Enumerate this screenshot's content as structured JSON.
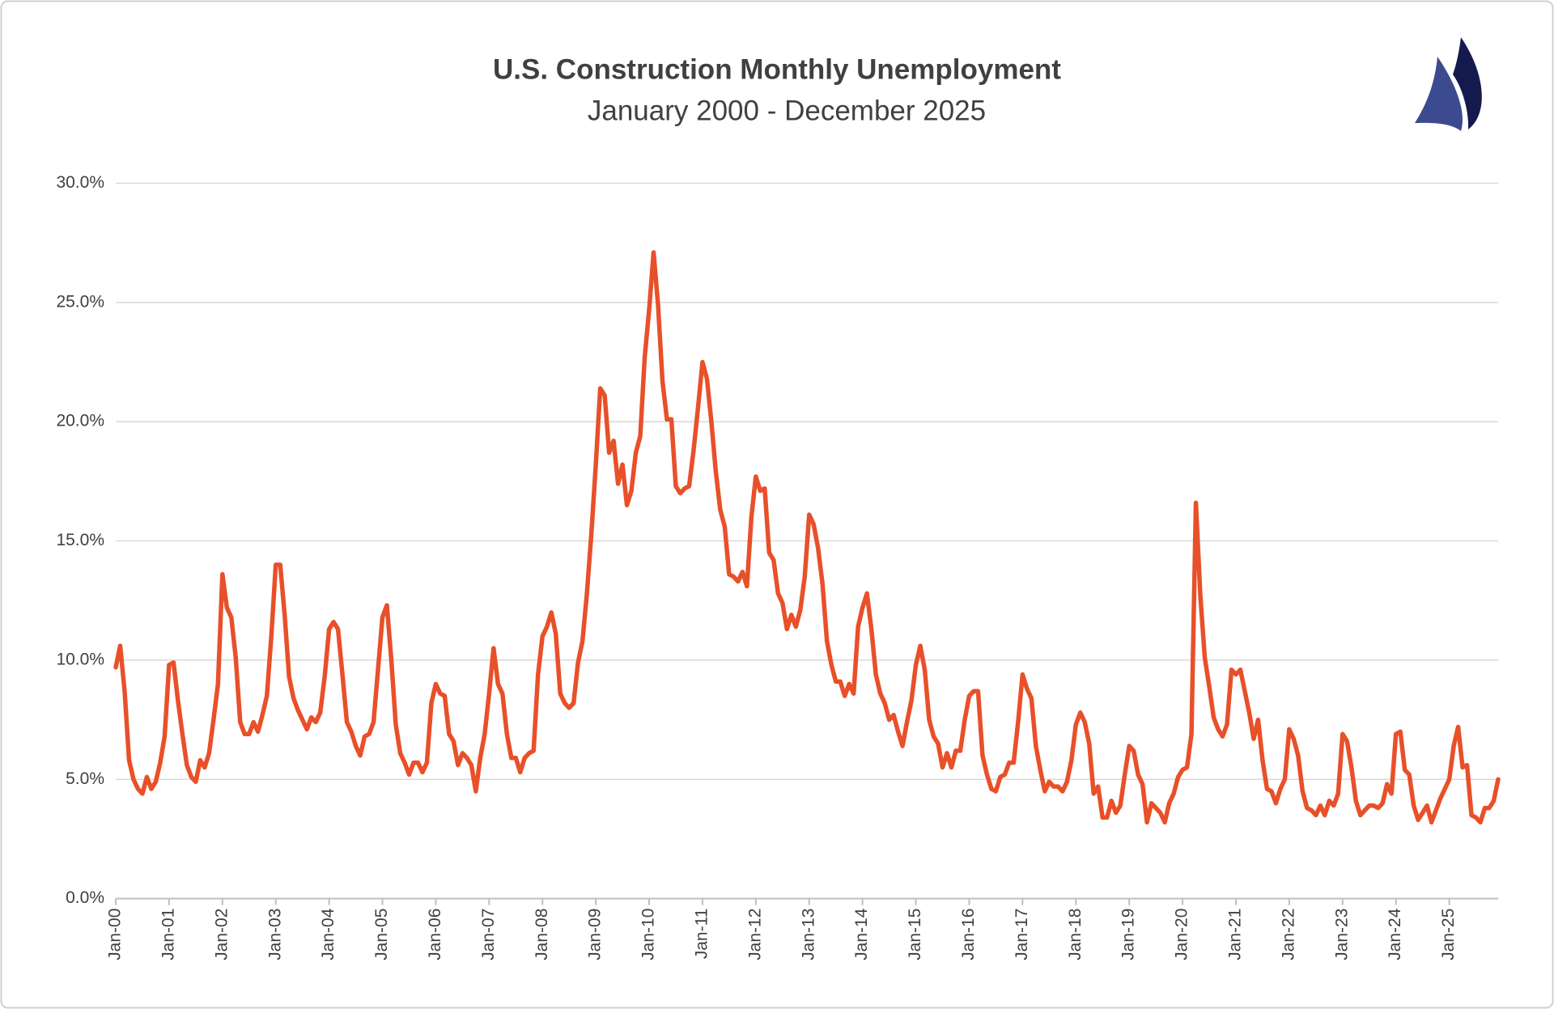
{
  "chart_data": {
    "type": "line",
    "title": "U.S. Construction Monthly Unemployment",
    "subtitle": "January 2000 - December 2025",
    "color": "#e8502a",
    "grid": true,
    "ylim": [
      0,
      30
    ],
    "yticks": [
      {
        "value": 0,
        "label": "0.0%"
      },
      {
        "value": 5,
        "label": "5.0%"
      },
      {
        "value": 10,
        "label": "10.0%"
      },
      {
        "value": 15,
        "label": "15.0%"
      },
      {
        "value": 20,
        "label": "20.0%"
      },
      {
        "value": 25,
        "label": "25.0%"
      },
      {
        "value": 30,
        "label": "30.0%"
      }
    ],
    "categories": [
      "Jan-00",
      null,
      null,
      null,
      null,
      null,
      null,
      null,
      null,
      null,
      null,
      null,
      "Jan-01",
      null,
      null,
      null,
      null,
      null,
      null,
      null,
      null,
      null,
      null,
      null,
      "Jan-02",
      null,
      null,
      null,
      null,
      null,
      null,
      null,
      null,
      null,
      null,
      null,
      "Jan-03",
      null,
      null,
      null,
      null,
      null,
      null,
      null,
      null,
      null,
      null,
      null,
      "Jan-04",
      null,
      null,
      null,
      null,
      null,
      null,
      null,
      null,
      null,
      null,
      null,
      "Jan-05",
      null,
      null,
      null,
      null,
      null,
      null,
      null,
      null,
      null,
      null,
      null,
      "Jan-06",
      null,
      null,
      null,
      null,
      null,
      null,
      null,
      null,
      null,
      null,
      null,
      "Jan-07",
      null,
      null,
      null,
      null,
      null,
      null,
      null,
      null,
      null,
      null,
      null,
      "Jan-08",
      null,
      null,
      null,
      null,
      null,
      null,
      null,
      null,
      null,
      null,
      null,
      "Jan-09",
      null,
      null,
      null,
      null,
      null,
      null,
      null,
      null,
      null,
      null,
      null,
      "Jan-10",
      null,
      null,
      null,
      null,
      null,
      null,
      null,
      null,
      null,
      null,
      null,
      "Jan-11",
      null,
      null,
      null,
      null,
      null,
      null,
      null,
      null,
      null,
      null,
      null,
      "Jan-12",
      null,
      null,
      null,
      null,
      null,
      null,
      null,
      null,
      null,
      null,
      null,
      "Jan-13",
      null,
      null,
      null,
      null,
      null,
      null,
      null,
      null,
      null,
      null,
      null,
      "Jan-14",
      null,
      null,
      null,
      null,
      null,
      null,
      null,
      null,
      null,
      null,
      null,
      "Jan-15",
      null,
      null,
      null,
      null,
      null,
      null,
      null,
      null,
      null,
      null,
      null,
      "Jan-16",
      null,
      null,
      null,
      null,
      null,
      null,
      null,
      null,
      null,
      null,
      null,
      "Jan-17",
      null,
      null,
      null,
      null,
      null,
      null,
      null,
      null,
      null,
      null,
      null,
      "Jan-18",
      null,
      null,
      null,
      null,
      null,
      null,
      null,
      null,
      null,
      null,
      null,
      "Jan-19",
      null,
      null,
      null,
      null,
      null,
      null,
      null,
      null,
      null,
      null,
      null,
      "Jan-20",
      null,
      null,
      null,
      null,
      null,
      null,
      null,
      null,
      null,
      null,
      null,
      "Jan-21",
      null,
      null,
      null,
      null,
      null,
      null,
      null,
      null,
      null,
      null,
      null,
      "Jan-22",
      null,
      null,
      null,
      null,
      null,
      null,
      null,
      null,
      null,
      null,
      null,
      "Jan-23",
      null,
      null,
      null,
      null,
      null,
      null,
      null,
      null,
      null,
      null,
      null,
      "Jan-24",
      null,
      null,
      null,
      null,
      null,
      null,
      null,
      null,
      null,
      null,
      null,
      "Jan-25",
      null,
      null,
      null,
      null,
      null,
      null,
      null,
      null,
      null,
      null,
      null
    ],
    "values": [
      9.7,
      10.6,
      8.7,
      5.8,
      5.0,
      4.6,
      4.4,
      5.1,
      4.6,
      4.9,
      5.7,
      6.8,
      9.8,
      9.9,
      8.3,
      6.9,
      5.6,
      5.1,
      4.9,
      5.8,
      5.5,
      6.1,
      7.5,
      9.0,
      13.6,
      12.2,
      11.8,
      10.1,
      7.4,
      6.9,
      6.9,
      7.4,
      7.0,
      7.7,
      8.5,
      11.0,
      14.0,
      14.0,
      11.9,
      9.3,
      8.4,
      7.9,
      7.5,
      7.1,
      7.6,
      7.4,
      7.8,
      9.3,
      11.3,
      11.6,
      11.3,
      9.4,
      7.4,
      7.0,
      6.4,
      6.0,
      6.8,
      6.9,
      7.4,
      9.6,
      11.8,
      12.3,
      10.0,
      7.3,
      6.1,
      5.7,
      5.2,
      5.7,
      5.7,
      5.3,
      5.7,
      8.2,
      9.0,
      8.6,
      8.5,
      6.9,
      6.6,
      5.6,
      6.1,
      5.9,
      5.6,
      4.5,
      5.9,
      6.9,
      8.6,
      10.5,
      9.0,
      8.6,
      6.9,
      5.9,
      5.9,
      5.3,
      5.9,
      6.1,
      6.2,
      9.4,
      11.0,
      11.4,
      12.0,
      11.1,
      8.6,
      8.2,
      8.0,
      8.2,
      9.9,
      10.8,
      12.8,
      15.3,
      18.2,
      21.4,
      21.1,
      18.7,
      19.2,
      17.4,
      18.2,
      16.5,
      17.1,
      18.7,
      19.4,
      22.7,
      24.7,
      27.1,
      24.9,
      21.7,
      20.1,
      20.1,
      17.3,
      17.0,
      17.2,
      17.3,
      18.8,
      20.6,
      22.5,
      21.8,
      20.0,
      17.9,
      16.3,
      15.6,
      13.6,
      13.5,
      13.3,
      13.7,
      13.1,
      16.0,
      17.7,
      17.1,
      17.2,
      14.5,
      14.2,
      12.8,
      12.4,
      11.3,
      11.9,
      11.4,
      12.1,
      13.5,
      16.1,
      15.7,
      14.7,
      13.2,
      10.8,
      9.8,
      9.1,
      9.1,
      8.5,
      9.0,
      8.6,
      11.4,
      12.2,
      12.8,
      11.3,
      9.4,
      8.6,
      8.2,
      7.5,
      7.7,
      7.0,
      6.4,
      7.4,
      8.3,
      9.8,
      10.6,
      9.6,
      7.5,
      6.8,
      6.5,
      5.5,
      6.1,
      5.5,
      6.2,
      6.2,
      7.5,
      8.5,
      8.7,
      8.7,
      6.0,
      5.2,
      4.6,
      4.5,
      5.1,
      5.2,
      5.7,
      5.7,
      7.4,
      9.4,
      8.8,
      8.4,
      6.4,
      5.4,
      4.5,
      4.9,
      4.7,
      4.7,
      4.5,
      4.9,
      5.8,
      7.3,
      7.8,
      7.4,
      6.5,
      4.4,
      4.7,
      3.4,
      3.4,
      4.1,
      3.6,
      3.9,
      5.2,
      6.4,
      6.2,
      5.2,
      4.8,
      3.2,
      4.0,
      3.8,
      3.6,
      3.2,
      4.0,
      4.4,
      5.1,
      5.4,
      5.5,
      6.9,
      16.6,
      12.7,
      10.1,
      8.9,
      7.6,
      7.1,
      6.8,
      7.3,
      9.6,
      9.4,
      9.6,
      8.7,
      7.8,
      6.7,
      7.5,
      5.8,
      4.6,
      4.5,
      4.0,
      4.6,
      5.0,
      7.1,
      6.7,
      6.0,
      4.5,
      3.8,
      3.7,
      3.5,
      3.9,
      3.5,
      4.1,
      3.9,
      4.4,
      6.9,
      6.6,
      5.5,
      4.1,
      3.5,
      3.7,
      3.9,
      3.9,
      3.8,
      4.0,
      4.8,
      4.4,
      6.9,
      7.0,
      5.4,
      5.2,
      3.9,
      3.3,
      3.6,
      3.9,
      3.2,
      3.7,
      4.2,
      4.6,
      5.0,
      6.4,
      7.2,
      5.5,
      5.6,
      3.5,
      3.4,
      3.2,
      3.8,
      3.8,
      4.1,
      5.0
    ]
  }
}
